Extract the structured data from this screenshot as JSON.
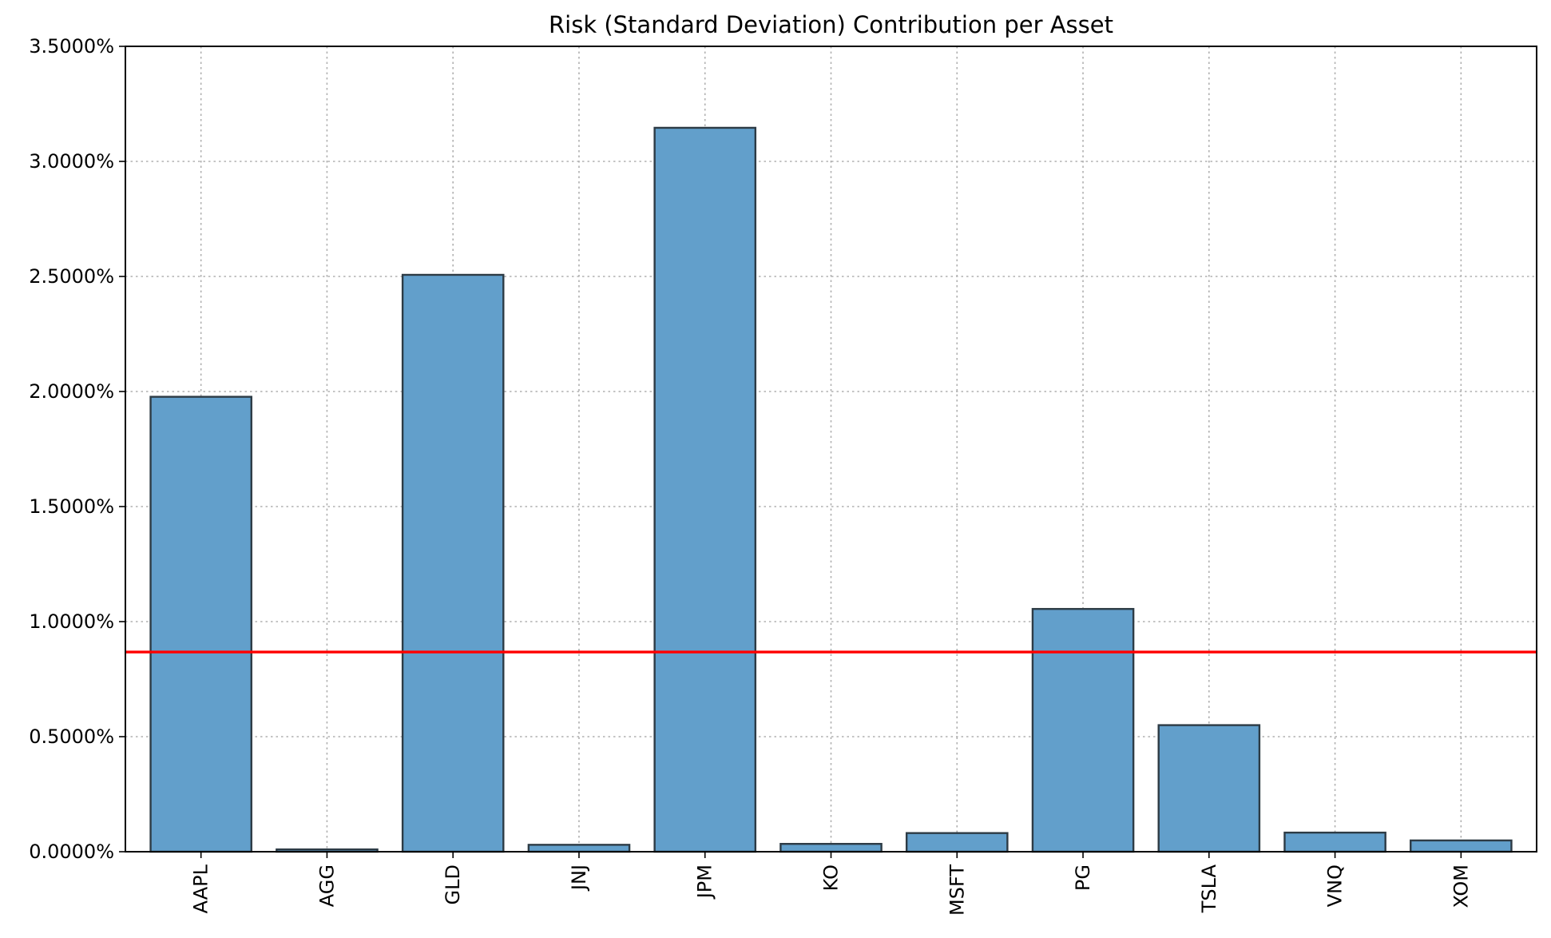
{
  "chart_data": {
    "type": "bar",
    "title": "Risk (Standard Deviation) Contribution per Asset",
    "xlabel": "",
    "ylabel": "",
    "categories": [
      "AAPL",
      "AGG",
      "GLD",
      "JNJ",
      "JPM",
      "KO",
      "MSFT",
      "PG",
      "TSLA",
      "VNQ",
      "XOM"
    ],
    "values": [
      1.977,
      0.01,
      2.507,
      0.03,
      3.146,
      0.034,
      0.081,
      1.055,
      0.55,
      0.083,
      0.049
    ],
    "value_unit": "percent",
    "ylim": [
      0,
      3.5
    ],
    "yticks": [
      0,
      0.5,
      1.0,
      1.5,
      2.0,
      2.5,
      3.0,
      3.5
    ],
    "ytick_labels": [
      "0.0000%",
      "0.5000%",
      "1.0000%",
      "1.5000%",
      "2.0000%",
      "2.5000%",
      "3.0000%",
      "3.5000%"
    ],
    "reference_line": {
      "value": 0.868
    },
    "grid": true,
    "grid_style": "dotted",
    "xtick_rotation": "vertical",
    "colors": {
      "bar_fill": "#629fcb",
      "bar_edge": "#2d3b45",
      "reference_line": "#ff0000",
      "grid": "#b0b0b0"
    }
  }
}
